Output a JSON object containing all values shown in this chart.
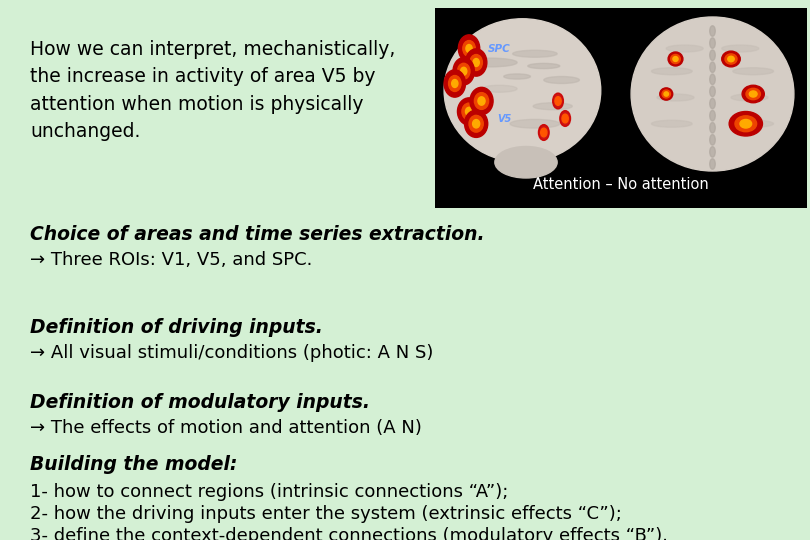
{
  "bg_color": "#d4f0d4",
  "title_text": "How we can interpret, mechanistically,\nthe increase in activity of area V5 by\nattention when motion is physically\nunchanged.",
  "title_fontsize": 13.5,
  "title_color": "#000000",
  "brain_label": "Attention – No attention",
  "brain_label_color": "#ffffff",
  "brain_bg": "#000000",
  "sections": [
    {
      "bold_italic": "Choice of areas and time series extraction.",
      "normal": "→ Three ROIs: V1, V5, and SPC."
    },
    {
      "bold_italic": "Definition of driving inputs.",
      "normal": "→ All visual stimuli/conditions (photic: A N S)"
    },
    {
      "bold_italic": "Definition of modulatory inputs.",
      "normal": "→ The effects of motion and attention (A N)"
    }
  ],
  "building_title": "Building the model:",
  "building_lines": [
    "1- how to connect regions (intrinsic connections “A”);",
    "2- how the driving inputs enter the system (extrinsic effects “C”);",
    "3- define the context-dependent connections (modulatory effects “B”)."
  ],
  "body_fontsize": 13.0,
  "bold_fontsize": 13.5
}
